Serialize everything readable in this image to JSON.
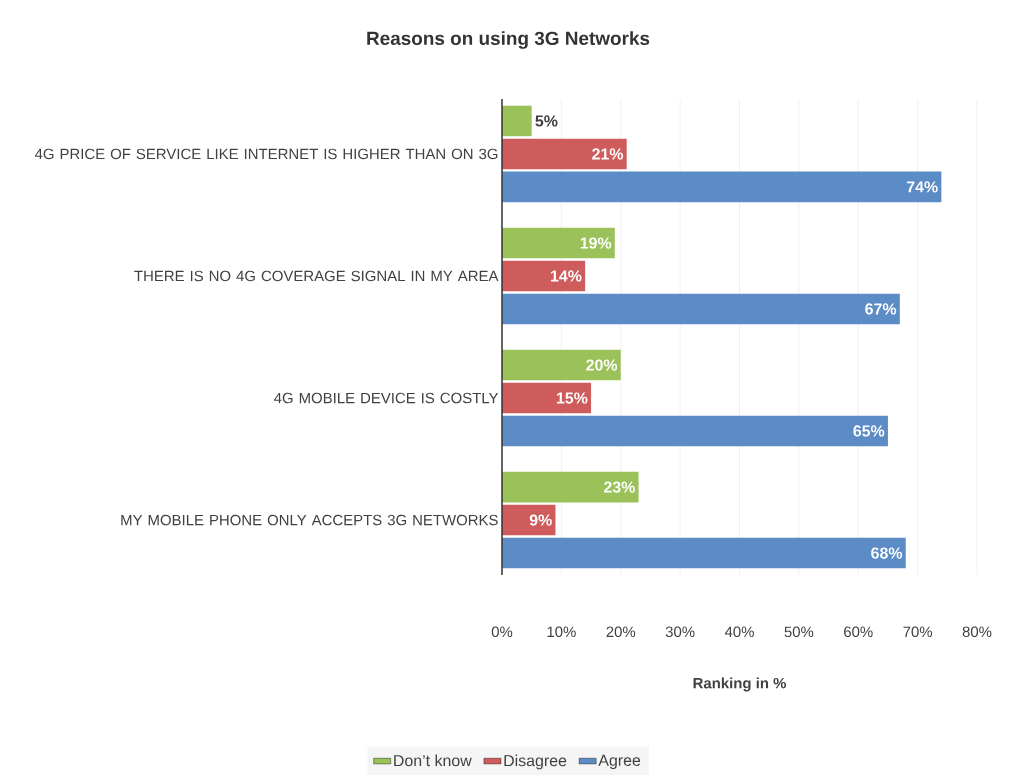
{
  "chart_data": {
    "type": "bar",
    "orientation": "horizontal",
    "title": "Reasons on using 3G Networks",
    "xlabel": "Ranking in %",
    "categories": [
      "4G PRICE OF SERVICE LIKE INTERNET IS HIGHER THAN ON 3G",
      "THERE IS NO 4G COVERAGE SIGNAL IN MY AREA",
      "4G MOBILE DEVICE IS COSTLY",
      "MY MOBILE PHONE ONLY ACCEPTS 3G NETWORKS"
    ],
    "series": [
      {
        "name": "Don’t know",
        "color": "#9bc25a",
        "values": [
          5,
          19,
          20,
          23
        ],
        "value_labels": [
          "5%",
          "19%",
          "20%",
          "23%"
        ]
      },
      {
        "name": "Disagree",
        "color": "#cf5c5c",
        "values": [
          21,
          14,
          15,
          9
        ],
        "value_labels": [
          "21%",
          "14%",
          "15%",
          "9%"
        ]
      },
      {
        "name": "Agree",
        "color": "#5b8cc6",
        "values": [
          74,
          67,
          65,
          68
        ],
        "value_labels": [
          "74%",
          "67%",
          "65%",
          "68%"
        ]
      }
    ],
    "xlim": [
      0,
      80
    ],
    "xticks": [
      {
        "value": 0,
        "label": "0%"
      },
      {
        "value": 10,
        "label": "10%"
      },
      {
        "value": 20,
        "label": "20%"
      },
      {
        "value": 30,
        "label": "30%"
      },
      {
        "value": 40,
        "label": "40%"
      },
      {
        "value": 50,
        "label": "50%"
      },
      {
        "value": 60,
        "label": "60%"
      },
      {
        "value": 70,
        "label": "70%"
      },
      {
        "value": 80,
        "label": "80%"
      }
    ],
    "grid": "x",
    "legend": "bottom"
  }
}
